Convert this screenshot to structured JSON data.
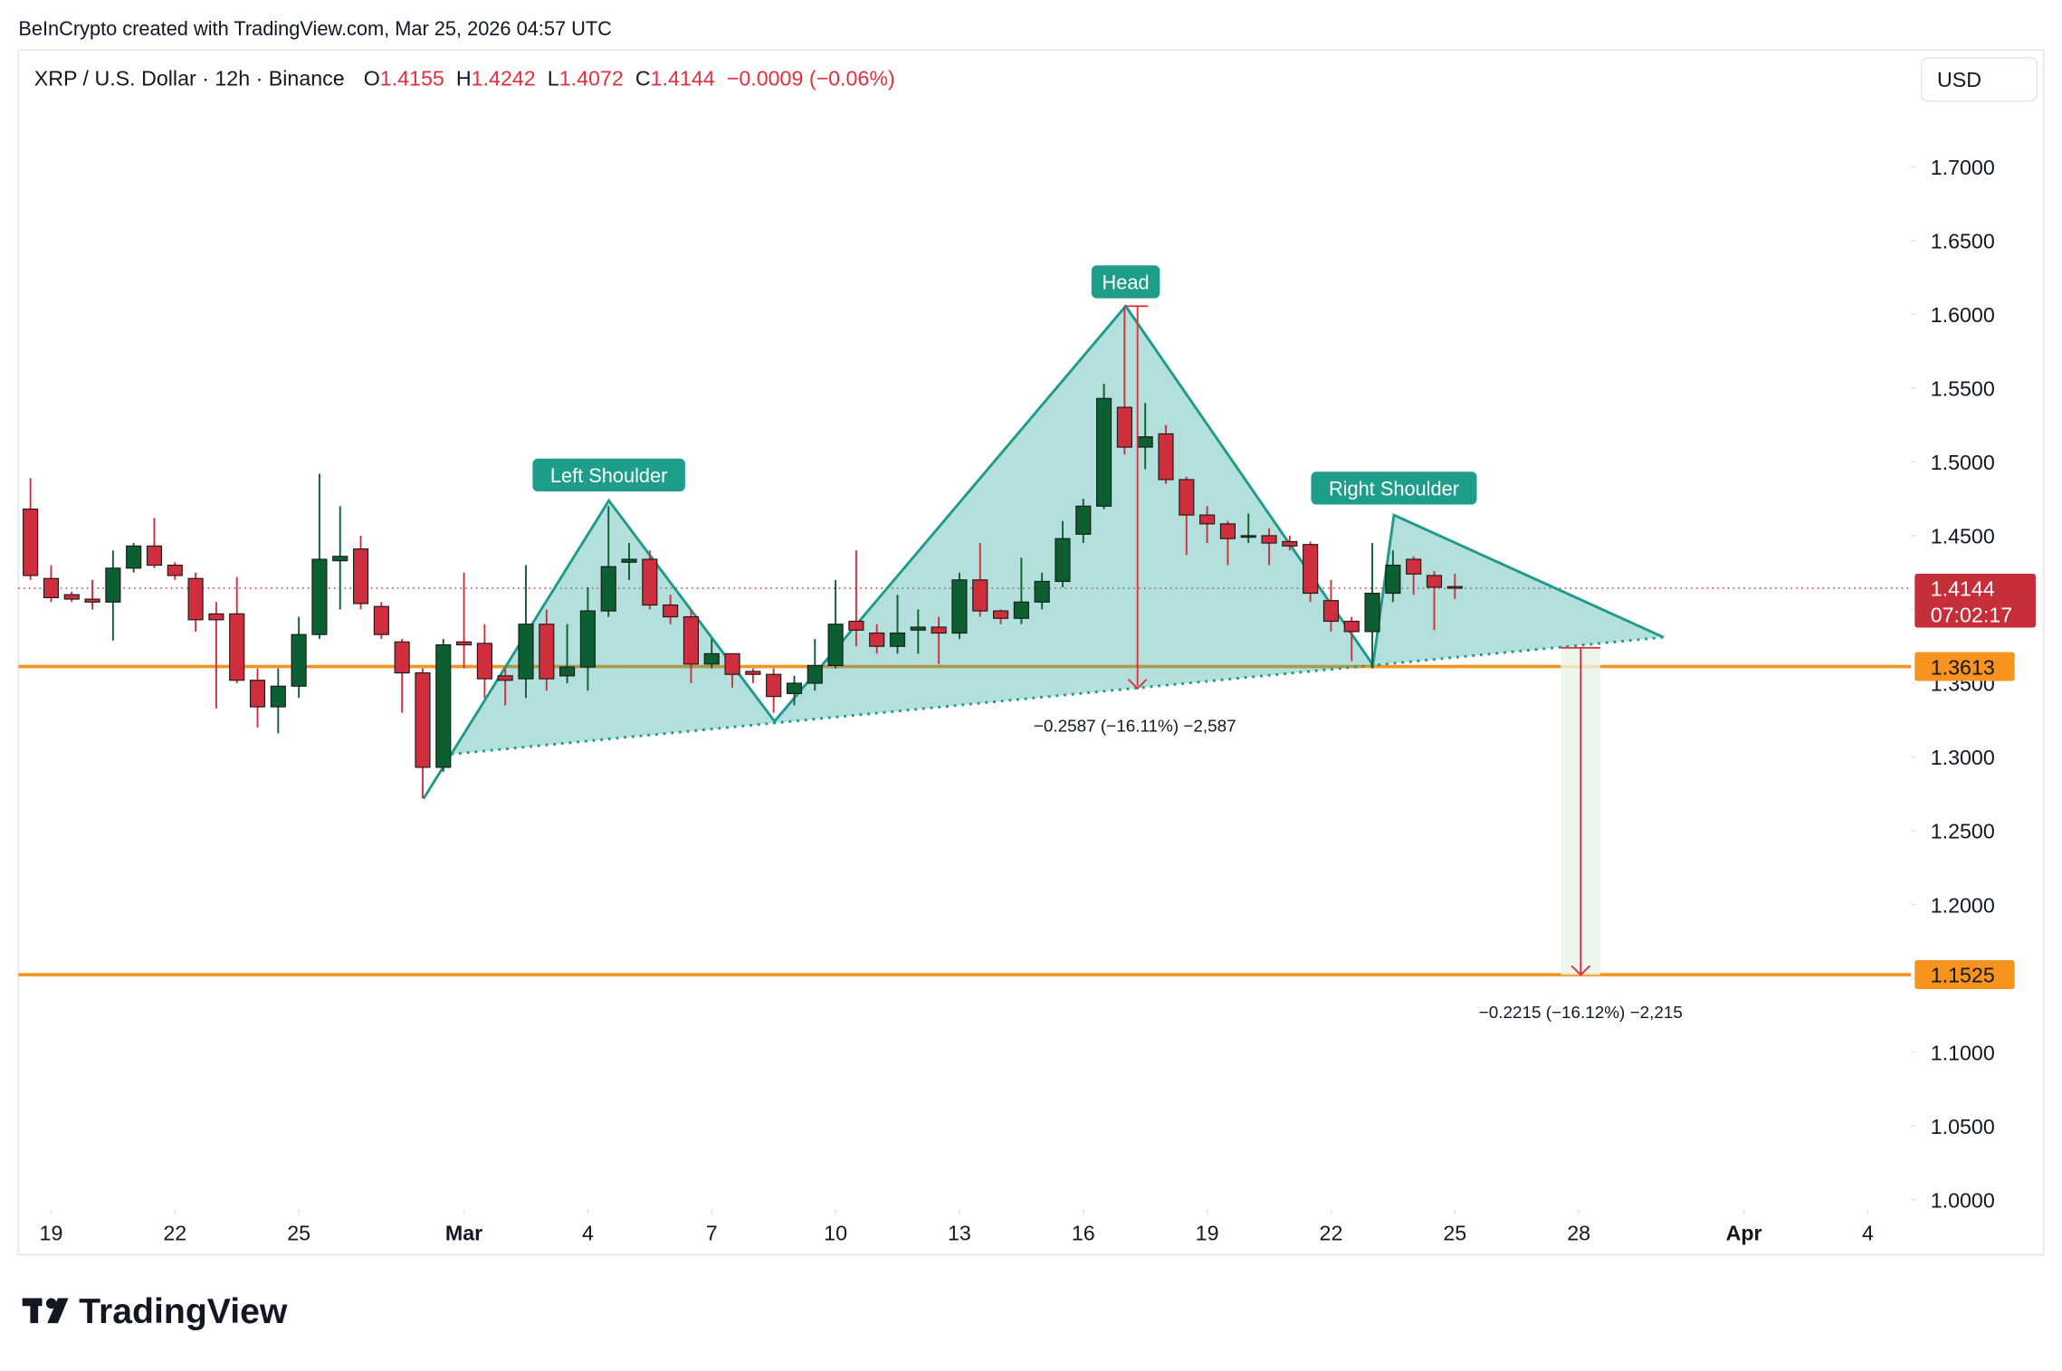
{
  "chart_data": {
    "type": "candlestick",
    "header": "BeInCrypto created with TradingView.com, Mar 25, 2026 04:57 UTC",
    "title": "XRP / U.S. Dollar · 12h · Binance",
    "legend": [
      {
        "label": "O",
        "value": 1.4155
      },
      {
        "label": "H",
        "value": 1.4242
      },
      {
        "label": "L",
        "value": 1.4072
      },
      {
        "label": "C",
        "value": 1.4144
      }
    ],
    "change": "−0.0009 (−0.06%)",
    "currency": "USD",
    "up_color": "#0c5f30",
    "down_color": "#cf2f3d",
    "legend_color": "#e0303f",
    "x": [
      "2026-02-18T12:00",
      "2026-02-19T00:00",
      "2026-02-19T12:00",
      "2026-02-20T00:00",
      "2026-02-20T12:00",
      "2026-02-21T00:00",
      "2026-02-21T12:00",
      "2026-02-22T00:00",
      "2026-02-22T12:00",
      "2026-02-23T00:00",
      "2026-02-23T12:00",
      "2026-02-24T00:00",
      "2026-02-24T12:00",
      "2026-02-25T00:00",
      "2026-02-25T12:00",
      "2026-02-26T00:00",
      "2026-02-26T12:00",
      "2026-02-27T00:00",
      "2026-02-27T12:00",
      "2026-02-28T00:00",
      "2026-02-28T12:00",
      "2026-03-01T00:00",
      "2026-03-01T12:00",
      "2026-03-02T00:00",
      "2026-03-02T12:00",
      "2026-03-03T00:00",
      "2026-03-03T12:00",
      "2026-03-04T00:00",
      "2026-03-04T12:00",
      "2026-03-05T00:00",
      "2026-03-05T12:00",
      "2026-03-06T00:00",
      "2026-03-06T12:00",
      "2026-03-07T00:00",
      "2026-03-07T12:00",
      "2026-03-08T00:00",
      "2026-03-08T12:00",
      "2026-03-09T00:00",
      "2026-03-09T12:00",
      "2026-03-10T00:00",
      "2026-03-10T12:00",
      "2026-03-11T00:00",
      "2026-03-11T12:00",
      "2026-03-12T00:00",
      "2026-03-12T12:00",
      "2026-03-13T00:00",
      "2026-03-13T12:00",
      "2026-03-14T00:00",
      "2026-03-14T12:00",
      "2026-03-15T00:00",
      "2026-03-15T12:00",
      "2026-03-16T00:00",
      "2026-03-16T12:00",
      "2026-03-17T00:00",
      "2026-03-17T12:00",
      "2026-03-18T00:00",
      "2026-03-18T12:00",
      "2026-03-19T00:00",
      "2026-03-19T12:00",
      "2026-03-20T00:00",
      "2026-03-20T12:00",
      "2026-03-21T00:00",
      "2026-03-21T12:00",
      "2026-03-22T00:00",
      "2026-03-22T12:00",
      "2026-03-23T00:00",
      "2026-03-23T12:00",
      "2026-03-24T00:00",
      "2026-03-24T12:00",
      "2026-03-25T00:00"
    ],
    "open": [
      1.468,
      1.421,
      1.41,
      1.407,
      1.405,
      1.428,
      1.443,
      1.43,
      1.421,
      1.397,
      1.397,
      1.352,
      1.334,
      1.348,
      1.383,
      1.433,
      1.441,
      1.402,
      1.378,
      1.357,
      1.293,
      1.378,
      1.377,
      1.355,
      1.353,
      1.39,
      1.355,
      1.361,
      1.399,
      1.432,
      1.434,
      1.403,
      1.395,
      1.363,
      1.37,
      1.358,
      1.356,
      1.343,
      1.35,
      1.362,
      1.392,
      1.384,
      1.375,
      1.386,
      1.388,
      1.384,
      1.42,
      1.399,
      1.394,
      1.405,
      1.419,
      1.451,
      1.47,
      1.537,
      1.51,
      1.519,
      1.488,
      1.464,
      1.458,
      1.449,
      1.45,
      1.446,
      1.444,
      1.406,
      1.392,
      1.385,
      1.411,
      1.434,
      1.423,
      1.4155
    ],
    "high": [
      1.489,
      1.43,
      1.412,
      1.42,
      1.44,
      1.445,
      1.462,
      1.432,
      1.425,
      1.405,
      1.422,
      1.36,
      1.36,
      1.395,
      1.492,
      1.47,
      1.45,
      1.405,
      1.38,
      1.36,
      1.38,
      1.425,
      1.39,
      1.36,
      1.43,
      1.4,
      1.39,
      1.415,
      1.47,
      1.445,
      1.44,
      1.41,
      1.4,
      1.38,
      1.37,
      1.36,
      1.36,
      1.355,
      1.38,
      1.42,
      1.44,
      1.39,
      1.41,
      1.4,
      1.395,
      1.425,
      1.445,
      1.4,
      1.435,
      1.425,
      1.46,
      1.475,
      1.553,
      1.606,
      1.54,
      1.525,
      1.49,
      1.47,
      1.46,
      1.465,
      1.455,
      1.45,
      1.446,
      1.42,
      1.395,
      1.445,
      1.44,
      1.436,
      1.426,
      1.4242
    ],
    "low": [
      1.42,
      1.405,
      1.405,
      1.4,
      1.379,
      1.425,
      1.428,
      1.42,
      1.385,
      1.333,
      1.35,
      1.32,
      1.316,
      1.34,
      1.38,
      1.4,
      1.4,
      1.38,
      1.33,
      1.272,
      1.29,
      1.36,
      1.34,
      1.335,
      1.34,
      1.345,
      1.35,
      1.345,
      1.395,
      1.42,
      1.4,
      1.39,
      1.35,
      1.36,
      1.347,
      1.35,
      1.33,
      1.335,
      1.345,
      1.36,
      1.375,
      1.37,
      1.37,
      1.37,
      1.363,
      1.38,
      1.395,
      1.39,
      1.39,
      1.4,
      1.415,
      1.445,
      1.468,
      1.505,
      1.495,
      1.485,
      1.437,
      1.445,
      1.43,
      1.445,
      1.43,
      1.44,
      1.405,
      1.385,
      1.365,
      1.36,
      1.405,
      1.41,
      1.386,
      1.4072
    ],
    "close": [
      1.423,
      1.408,
      1.407,
      1.405,
      1.428,
      1.443,
      1.43,
      1.423,
      1.393,
      1.393,
      1.352,
      1.334,
      1.348,
      1.383,
      1.434,
      1.436,
      1.404,
      1.383,
      1.357,
      1.293,
      1.376,
      1.376,
      1.353,
      1.352,
      1.39,
      1.353,
      1.361,
      1.399,
      1.429,
      1.434,
      1.403,
      1.395,
      1.363,
      1.37,
      1.356,
      1.356,
      1.341,
      1.35,
      1.362,
      1.39,
      1.386,
      1.375,
      1.384,
      1.388,
      1.384,
      1.42,
      1.399,
      1.394,
      1.405,
      1.419,
      1.448,
      1.47,
      1.543,
      1.51,
      1.517,
      1.488,
      1.464,
      1.458,
      1.448,
      1.45,
      1.445,
      1.443,
      1.411,
      1.392,
      1.385,
      1.411,
      1.43,
      1.424,
      1.415,
      1.4144
    ],
    "xlim": [
      "2026-02-18T05:00",
      "2026-04-05T01:00"
    ],
    "xticks": [
      {
        "value": "2026-02-19",
        "label": "19"
      },
      {
        "value": "2026-02-22",
        "label": "22"
      },
      {
        "value": "2026-02-25",
        "label": "25"
      },
      {
        "value": "2026-03-01",
        "label": "Mar"
      },
      {
        "value": "2026-03-04",
        "label": "4"
      },
      {
        "value": "2026-03-07",
        "label": "7"
      },
      {
        "value": "2026-03-10",
        "label": "10"
      },
      {
        "value": "2026-03-13",
        "label": "13"
      },
      {
        "value": "2026-03-16",
        "label": "16"
      },
      {
        "value": "2026-03-19",
        "label": "19"
      },
      {
        "value": "2026-03-22",
        "label": "22"
      },
      {
        "value": "2026-03-25",
        "label": "25"
      },
      {
        "value": "2026-03-28",
        "label": "28"
      },
      {
        "value": "2026-04-01",
        "label": "Apr"
      },
      {
        "value": "2026-04-04",
        "label": "4"
      }
    ],
    "ylim": [
      0.9938,
      1.7792
    ],
    "yticks": [
      {
        "value": 1.0,
        "label": "1.0000"
      },
      {
        "value": 1.05,
        "label": "1.0500"
      },
      {
        "value": 1.1,
        "label": "1.1000"
      },
      {
        "value": 1.15,
        "label": "1.1500"
      },
      {
        "value": 1.2,
        "label": "1.2000"
      },
      {
        "value": 1.25,
        "label": "1.2500"
      },
      {
        "value": 1.3,
        "label": "1.3000"
      },
      {
        "value": 1.35,
        "label": "1.3500"
      },
      {
        "value": 1.4,
        "label": "1.4000"
      },
      {
        "value": 1.45,
        "label": "1.4500"
      },
      {
        "value": 1.5,
        "label": "1.5000"
      },
      {
        "value": 1.55,
        "label": "1.5500"
      },
      {
        "value": 1.6,
        "label": "1.6000"
      },
      {
        "value": 1.65,
        "label": "1.6500"
      },
      {
        "value": 1.7,
        "label": "1.7000"
      }
    ],
    "levels": [
      {
        "value": 1.3613,
        "color": "#f7931e"
      },
      {
        "value": 1.1525,
        "color": "#f7931e"
      }
    ],
    "last_price": {
      "value": 1.4144,
      "countdown": "07:02:17",
      "color": "#c62f3a"
    },
    "pattern_labels": [
      "Left Shoulder",
      "Head",
      "Right Shoulder"
    ],
    "measures": [
      "−0.2587 (−16.11%) −2,587",
      "−0.2215 (−16.12%) −2,215"
    ],
    "brand": "TradingView"
  }
}
